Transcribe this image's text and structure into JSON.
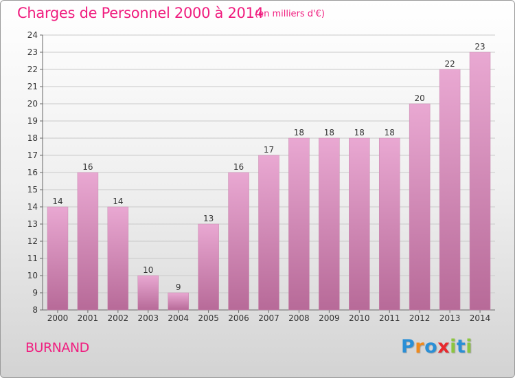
{
  "title": "Charges de Personnel 2000 à 2014",
  "subtitle": "(en milliers d'€)",
  "commune": "BURNAND",
  "logo": {
    "letters": [
      "P",
      "r",
      "o",
      "x",
      "i",
      "t",
      "i"
    ],
    "colors": [
      "#2a8fd6",
      "#f08a1c",
      "#2a8fd6",
      "#e8282d",
      "#8cc63f",
      "#2a8fd6",
      "#8cc63f"
    ]
  },
  "colors": {
    "title": "#f01d7f",
    "bar_top": "#e9a8d2",
    "bar_bottom": "#b76a98",
    "grid": "#c9c9c9",
    "axis": "#666666"
  },
  "chart_data": {
    "type": "bar",
    "categories": [
      "2000",
      "2001",
      "2002",
      "2003",
      "2004",
      "2005",
      "2006",
      "2007",
      "2008",
      "2009",
      "2010",
      "2011",
      "2012",
      "2013",
      "2014"
    ],
    "values": [
      14,
      16,
      14,
      10,
      9,
      13,
      16,
      17,
      18,
      18,
      18,
      18,
      20,
      22,
      23
    ],
    "title": "Charges de Personnel 2000 à 2014",
    "subtitle": "(en milliers d'€)",
    "xlabel": "",
    "ylabel": "",
    "ylim": [
      8,
      24
    ],
    "yticks": [
      8,
      9,
      10,
      11,
      12,
      13,
      14,
      15,
      16,
      17,
      18,
      19,
      20,
      21,
      22,
      23,
      24
    ],
    "grid": true,
    "data_labels": true
  }
}
